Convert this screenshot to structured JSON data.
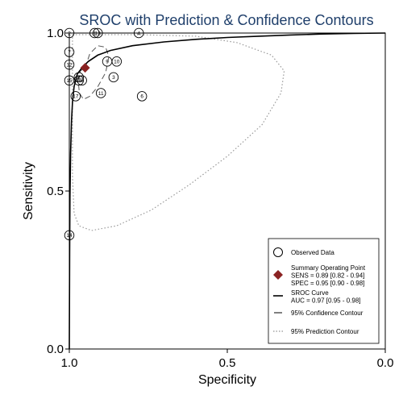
{
  "chart_data": {
    "type": "scatter",
    "title": "SROC with Prediction & Confidence Contours",
    "xlabel": "Specificity",
    "ylabel": "Sensitivity",
    "x_reversed": true,
    "xlim": [
      1.0,
      0.0
    ],
    "ylim": [
      0.0,
      1.0
    ],
    "x_ticks": [
      {
        "value": 1.0,
        "label": "1.0"
      },
      {
        "value": 0.5,
        "label": "0.5"
      },
      {
        "value": 0.0,
        "label": "0.0"
      }
    ],
    "y_ticks": [
      {
        "value": 0.0,
        "label": "0.0"
      },
      {
        "value": 0.5,
        "label": "0.5"
      },
      {
        "value": 1.0,
        "label": "1.0"
      }
    ],
    "grid": false,
    "legend_position": "bottom-right",
    "observed_points": [
      {
        "id": "1",
        "spec": 0.92,
        "sens": 1.0
      },
      {
        "id": "2",
        "spec": 1.0,
        "sens": 1.0
      },
      {
        "id": "3",
        "spec": 0.86,
        "sens": 0.86
      },
      {
        "id": "4",
        "spec": 0.78,
        "sens": 1.0
      },
      {
        "id": "5",
        "spec": 0.97,
        "sens": 0.86
      },
      {
        "id": "6",
        "spec": 0.77,
        "sens": 0.8
      },
      {
        "id": "7",
        "spec": 1.0,
        "sens": 0.94
      },
      {
        "id": "8",
        "spec": 0.96,
        "sens": 0.85
      },
      {
        "id": "9",
        "spec": 0.88,
        "sens": 0.91
      },
      {
        "id": "10",
        "spec": 0.85,
        "sens": 0.91
      },
      {
        "id": "11",
        "spec": 0.9,
        "sens": 0.81
      },
      {
        "id": "12",
        "spec": 1.0,
        "sens": 0.9
      },
      {
        "id": "13",
        "spec": 0.91,
        "sens": 1.0
      },
      {
        "id": "14",
        "spec": 1.0,
        "sens": 0.36
      },
      {
        "id": "15",
        "spec": 1.0,
        "sens": 0.85
      },
      {
        "id": "16",
        "spec": 0.97,
        "sens": 0.85
      },
      {
        "id": "17",
        "spec": 0.98,
        "sens": 0.8
      }
    ],
    "summary_point": {
      "sens": 0.89,
      "spec": 0.95
    },
    "sroc_curve": [
      [
        1.0,
        0.0
      ],
      [
        0.999,
        0.3
      ],
      [
        0.998,
        0.48
      ],
      [
        0.996,
        0.62
      ],
      [
        0.993,
        0.72
      ],
      [
        0.99,
        0.78
      ],
      [
        0.985,
        0.83
      ],
      [
        0.975,
        0.87
      ],
      [
        0.96,
        0.89
      ],
      [
        0.94,
        0.91
      ],
      [
        0.91,
        0.93
      ],
      [
        0.87,
        0.945
      ],
      [
        0.8,
        0.96
      ],
      [
        0.7,
        0.972
      ],
      [
        0.6,
        0.98
      ],
      [
        0.5,
        0.986
      ],
      [
        0.4,
        0.99
      ],
      [
        0.3,
        0.994
      ],
      [
        0.2,
        0.997
      ],
      [
        0.1,
        0.999
      ],
      [
        0.0,
        1.0
      ]
    ],
    "confidence_contour": [
      [
        0.95,
        0.89
      ],
      [
        0.935,
        0.935
      ],
      [
        0.91,
        0.96
      ],
      [
        0.885,
        0.955
      ],
      [
        0.875,
        0.925
      ],
      [
        0.885,
        0.875
      ],
      [
        0.91,
        0.83
      ],
      [
        0.935,
        0.8
      ],
      [
        0.955,
        0.79
      ],
      [
        0.968,
        0.81
      ],
      [
        0.972,
        0.85
      ],
      [
        0.965,
        0.88
      ],
      [
        0.95,
        0.89
      ]
    ],
    "prediction_contour": [
      [
        0.99,
        0.995
      ],
      [
        0.9,
        0.995
      ],
      [
        0.78,
        0.995
      ],
      [
        0.6,
        0.99
      ],
      [
        0.47,
        0.97
      ],
      [
        0.36,
        0.93
      ],
      [
        0.32,
        0.88
      ],
      [
        0.33,
        0.81
      ],
      [
        0.39,
        0.71
      ],
      [
        0.5,
        0.61
      ],
      [
        0.62,
        0.52
      ],
      [
        0.74,
        0.44
      ],
      [
        0.85,
        0.39
      ],
      [
        0.93,
        0.375
      ],
      [
        0.97,
        0.39
      ],
      [
        0.985,
        0.43
      ],
      [
        0.99,
        0.55
      ],
      [
        0.99,
        0.7
      ],
      [
        0.99,
        0.85
      ],
      [
        0.99,
        0.995
      ]
    ],
    "legend": [
      {
        "key": "observed",
        "lines": [
          "Observed Data"
        ]
      },
      {
        "key": "summary",
        "lines": [
          "Summary Operating Point",
          "SENS = 0.89 [0.82 - 0.94]",
          "SPEC = 0.95 [0.90 - 0.98]"
        ]
      },
      {
        "key": "sroc",
        "lines": [
          "SROC Curve",
          "AUC = 0.97 [0.95 - 0.98]"
        ]
      },
      {
        "key": "confidence",
        "lines": [
          "95% Confidence Contour"
        ]
      },
      {
        "key": "prediction",
        "lines": [
          "95% Prediction Contour"
        ]
      }
    ],
    "colors": {
      "title": "#1f3f6b",
      "summary_marker": "#8b2323",
      "axis": "#000000",
      "prediction": "#9a9a9a"
    }
  }
}
